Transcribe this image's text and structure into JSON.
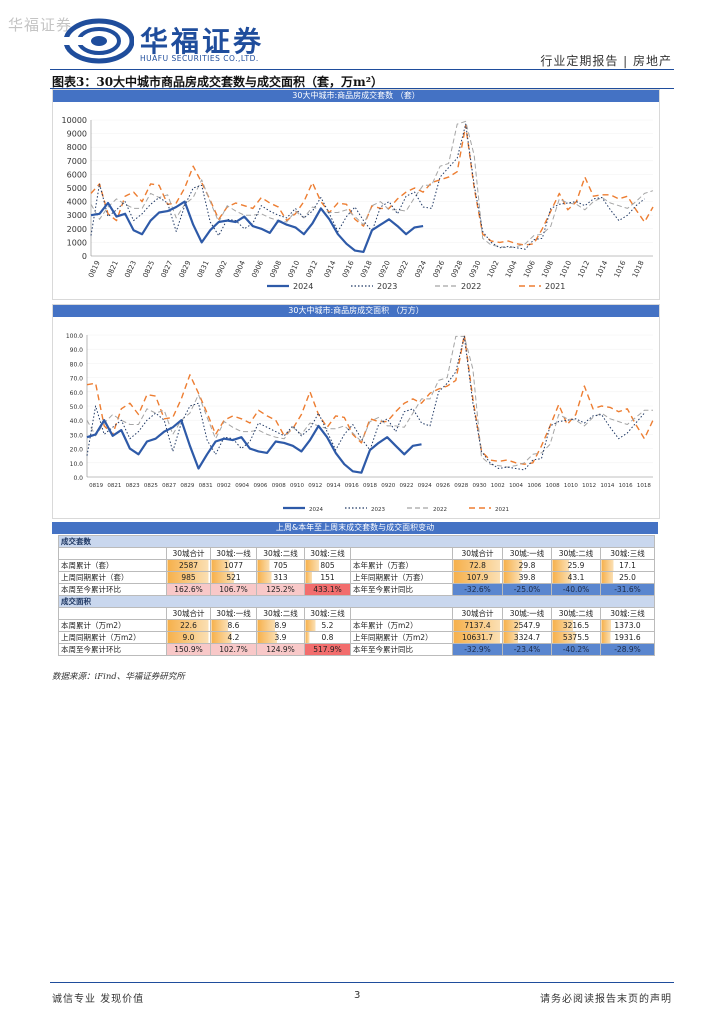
{
  "watermark": "华福证券",
  "brand": {
    "name_cn": "华福证券",
    "name_en": "HUAFU SECURITIES CO.,LTD.",
    "blue": "#1f4d9c"
  },
  "header": {
    "report_type": "行业定期报告 | 房地产"
  },
  "figure": {
    "title": "图表3：30大中城市商品房成交套数与成交面积（套，万m²）"
  },
  "chart_data": [
    {
      "type": "line",
      "title": "30大中城市:商品房成交套数 （套）",
      "ylim": [
        0,
        10000
      ],
      "yticks": [
        0,
        1000,
        2000,
        3000,
        4000,
        5000,
        6000,
        7000,
        8000,
        9000,
        10000
      ],
      "x_tick_labels": [
        "0819",
        "0821",
        "0823",
        "0825",
        "0827",
        "0829",
        "0831",
        "0902",
        "0904",
        "0906",
        "0908",
        "0910",
        "0912",
        "0914",
        "0916",
        "0918",
        "0920",
        "0922",
        "0924",
        "0926",
        "0928",
        "0930",
        "1002",
        "1004",
        "1006",
        "1008",
        "1010",
        "1012",
        "1014",
        "1016",
        "1018"
      ],
      "series": [
        {
          "name": "2024",
          "color": "#2e5aa8",
          "dash": "",
          "width": 2.2,
          "values": [
            3000,
            3100,
            3900,
            2900,
            3100,
            1900,
            1600,
            2600,
            3200,
            3300,
            3600,
            4000,
            2300,
            1000,
            1900,
            2500,
            2600,
            2500,
            2900,
            2200,
            2000,
            1700,
            2600,
            2300,
            2100,
            1600,
            2400,
            3500,
            2700,
            1600,
            900,
            400,
            300,
            1900,
            2300,
            2700,
            2200,
            1600,
            2100,
            2200
          ]
        },
        {
          "name": "2023",
          "color": "#1f3864",
          "dash": "1.5 2",
          "width": 1,
          "values": [
            1500,
            5300,
            2900,
            3400,
            4000,
            2600,
            3100,
            3800,
            4300,
            3900,
            1800,
            3700,
            5000,
            5200,
            2500,
            1500,
            2700,
            2600,
            2000,
            2400,
            3700,
            3300,
            3000,
            2800,
            3500,
            2800,
            3300,
            4300,
            3100,
            1800,
            2900,
            3600,
            2600,
            1800,
            3600,
            4000,
            3100,
            4400,
            4700,
            3600,
            3500,
            5800,
            6500,
            7200,
            9700,
            5200,
            1800,
            1000,
            600,
            700,
            600,
            500,
            1200,
            1300,
            3500,
            3800,
            3900,
            4000,
            3700,
            4200,
            4300,
            3400,
            2600,
            3000,
            3700,
            4200
          ]
        },
        {
          "name": "2022",
          "color": "#a5a5a5",
          "dash": "5 3",
          "width": 1,
          "values": [
            3800,
            2700,
            3600,
            4200,
            3800,
            3500,
            3500,
            4600,
            4300,
            4500,
            2800,
            3800,
            4300,
            5600,
            4000,
            2500,
            3700,
            3300,
            3000,
            3000,
            3100,
            2800,
            2600,
            2500,
            3300,
            2800,
            3600,
            3400,
            3200,
            3200,
            3400,
            2900,
            2300,
            3700,
            4000,
            3400,
            3400,
            3300,
            4300,
            5200,
            5200,
            6600,
            6800,
            9700,
            9900,
            7400,
            1300,
            800,
            700,
            600,
            700,
            900,
            1500,
            1600,
            2200,
            4200,
            3900,
            3800,
            3400,
            4000,
            4300,
            3900,
            3700,
            3500,
            4000,
            4600,
            4800
          ]
        },
        {
          "name": "2021",
          "color": "#ed7d31",
          "dash": "6 4",
          "width": 1.4,
          "values": [
            4600,
            5300,
            3100,
            2600,
            4400,
            4700,
            4000,
            5300,
            5200,
            3800,
            3900,
            5000,
            6600,
            5400,
            4100,
            2700,
            3600,
            3900,
            3700,
            3500,
            4300,
            3900,
            3600,
            2600,
            3100,
            4000,
            5400,
            4000,
            3200,
            3900,
            3800,
            2700,
            2200,
            3700,
            3500,
            3500,
            4200,
            4700,
            5000,
            4700,
            5400,
            5600,
            5800,
            6200,
            9600,
            5000,
            1600,
            1100,
            1000,
            1100,
            900,
            800,
            900,
            2000,
            3300,
            4600,
            3400,
            4000,
            5800,
            4400,
            4500,
            4500,
            4200,
            4400,
            3400,
            2500,
            3600
          ]
        }
      ]
    },
    {
      "type": "line",
      "title": "30大中城市:商品房成交面积 （万方）",
      "ylim": [
        0,
        100
      ],
      "yticks": [
        0.0,
        10.0,
        20.0,
        30.0,
        40.0,
        50.0,
        60.0,
        70.0,
        80.0,
        90.0,
        100.0
      ],
      "x_tick_labels": [
        "0819",
        "0821",
        "0823",
        "0825",
        "0827",
        "0829",
        "0831",
        "0902",
        "0904",
        "0906",
        "0908",
        "0910",
        "0912",
        "0914",
        "0916",
        "0918",
        "0920",
        "0922",
        "0924",
        "0926",
        "0928",
        "0930",
        "1002",
        "1004",
        "1006",
        "1008",
        "1010",
        "1012",
        "1014",
        "1016",
        "1018"
      ],
      "series": [
        {
          "name": "2024",
          "color": "#2e5aa8",
          "dash": "",
          "width": 2.2,
          "values": [
            28,
            30,
            40,
            29,
            33,
            20,
            16,
            25,
            27,
            32,
            35,
            40,
            22,
            6,
            16,
            25,
            27,
            26,
            28,
            20,
            18,
            17,
            25,
            24,
            22,
            18,
            26,
            36,
            28,
            17,
            9,
            4,
            3,
            19,
            24,
            28,
            22,
            16,
            22,
            23
          ]
        },
        {
          "name": "2023",
          "color": "#1f3864",
          "dash": "1.5 2",
          "width": 1,
          "values": [
            15,
            50,
            30,
            35,
            40,
            27,
            32,
            40,
            45,
            40,
            18,
            38,
            50,
            52,
            26,
            16,
            28,
            27,
            20,
            25,
            38,
            35,
            32,
            29,
            36,
            29,
            34,
            45,
            32,
            19,
            30,
            37,
            27,
            19,
            37,
            41,
            32,
            46,
            48,
            38,
            36,
            60,
            66,
            74,
            99,
            52,
            18,
            10,
            6,
            7,
            6,
            5,
            12,
            13,
            36,
            39,
            40,
            41,
            38,
            43,
            44,
            35,
            27,
            31,
            38,
            45
          ]
        },
        {
          "name": "2022",
          "color": "#a5a5a5",
          "dash": "5 3",
          "width": 1,
          "values": [
            40,
            29,
            38,
            44,
            40,
            37,
            37,
            48,
            45,
            47,
            30,
            40,
            45,
            58,
            42,
            27,
            39,
            35,
            32,
            32,
            33,
            30,
            28,
            27,
            35,
            30,
            38,
            36,
            34,
            34,
            36,
            31,
            25,
            39,
            42,
            36,
            36,
            35,
            45,
            55,
            55,
            68,
            70,
            99,
            99,
            76,
            14,
            9,
            8,
            7,
            8,
            10,
            16,
            17,
            23,
            44,
            41,
            40,
            36,
            42,
            45,
            41,
            39,
            37,
            42,
            47,
            47
          ]
        },
        {
          "name": "2021",
          "color": "#ed7d31",
          "dash": "6 4",
          "width": 1.4,
          "values": [
            65,
            66,
            36,
            30,
            48,
            52,
            44,
            58,
            57,
            41,
            42,
            55,
            72,
            59,
            45,
            30,
            40,
            43,
            41,
            38,
            47,
            43,
            40,
            29,
            34,
            44,
            60,
            44,
            35,
            43,
            42,
            30,
            24,
            41,
            39,
            39,
            46,
            52,
            55,
            52,
            59,
            62,
            64,
            68,
            100,
            55,
            18,
            12,
            11,
            12,
            10,
            9,
            10,
            22,
            36,
            51,
            37,
            44,
            64,
            48,
            50,
            49,
            46,
            48,
            37,
            27,
            40
          ]
        }
      ]
    }
  ],
  "table": {
    "title": "上周&本年至上周末成交套数与成交面积变动",
    "sections": [
      {
        "name": "成交套数",
        "left_headers": [
          "30城合计",
          "30城:一线",
          "30城:二线",
          "30城:三线"
        ],
        "right_headers": [
          "30城合计",
          "30城:一线",
          "30城:二线",
          "30城:三线"
        ],
        "rows": [
          {
            "left_label": "本周累计（套）",
            "left_values": [
              "2587",
              "1077",
              "705",
              "805"
            ],
            "right_label": "本年累计（万套）",
            "right_values": [
              "72.8",
              "29.8",
              "25.9",
              "17.1"
            ]
          },
          {
            "left_label": "上周同期累计（套）",
            "left_values": [
              "985",
              "521",
              "313",
              "151"
            ],
            "right_label": "上年同期累计（万套）",
            "right_values": [
              "107.9",
              "39.8",
              "43.1",
              "25.0"
            ]
          },
          {
            "left_label": "本周至今累计环比",
            "left_values": [
              "162.6%",
              "106.7%",
              "125.2%",
              "433.1%"
            ],
            "right_label": "本年至今累计同比",
            "right_values": [
              "-32.6%",
              "-25.0%",
              "-40.0%",
              "-31.6%"
            ]
          }
        ]
      },
      {
        "name": "成交面积",
        "left_headers": [
          "30城合计",
          "30城:一线",
          "30城:二线",
          "30城:三线"
        ],
        "right_headers": [
          "30城合计",
          "30城:一线",
          "30城:二线",
          "30城:三线"
        ],
        "rows": [
          {
            "left_label": "本周累计（万m2）",
            "left_values": [
              "22.6",
              "8.6",
              "8.9",
              "5.2"
            ],
            "right_label": "本年累计（万m2）",
            "right_values": [
              "7137.4",
              "2547.9",
              "3216.5",
              "1373.0"
            ]
          },
          {
            "left_label": "上周同期累计（万m2）",
            "left_values": [
              "9.0",
              "4.2",
              "3.9",
              "0.8"
            ],
            "right_label": "上年同期累计（万m2）",
            "right_values": [
              "10631.7",
              "3324.7",
              "5375.5",
              "1931.6"
            ]
          },
          {
            "left_label": "本周至今累计环比",
            "left_values": [
              "150.9%",
              "102.7%",
              "124.9%",
              "517.9%"
            ],
            "right_label": "本年至今累计同比",
            "right_values": [
              "-32.9%",
              "-23.4%",
              "-40.2%",
              "-28.9%"
            ]
          }
        ]
      }
    ]
  },
  "source": "数据来源：iFind、华福证券研究所",
  "footer": {
    "left": "诚信专业  发现价值",
    "page": "3",
    "right": "请务必阅读报告末页的声明"
  }
}
